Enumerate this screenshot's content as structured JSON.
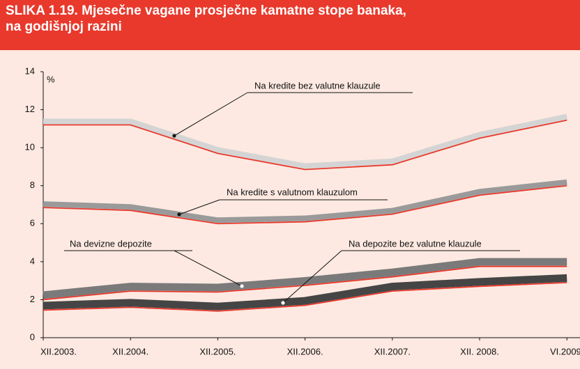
{
  "chart_data": {
    "type": "line",
    "title": [
      "SLIKA 1.19. Mjesečne vagane prosječne kamatne stope banaka,",
      "na godišnjoj razini"
    ],
    "y_unit": "%",
    "categories": [
      "XII.2003.",
      "XII.2004.",
      "XII.2005.",
      "XII.2006.",
      "XII.2007.",
      "XII. 2008.",
      "VI.2009."
    ],
    "ylim": [
      0,
      14
    ],
    "yticks": [
      0,
      2,
      4,
      6,
      8,
      10,
      12,
      14
    ],
    "line_color": "#e8392c",
    "series": [
      {
        "name": "Na kredite bez valutne klauzule",
        "color": "#d4d4d4",
        "values": [
          11.2,
          11.2,
          9.7,
          8.85,
          9.1,
          10.5,
          11.45
        ]
      },
      {
        "name": "Na kredite s valutnom klauzulom",
        "color": "#9a9a9a",
        "values": [
          6.85,
          6.7,
          6.0,
          6.1,
          6.5,
          7.5,
          8.0
        ]
      },
      {
        "name": "Na devizne depozite",
        "color": "#7a7a7a",
        "values": [
          2.0,
          2.45,
          2.4,
          2.75,
          3.2,
          3.75,
          3.75
        ]
      },
      {
        "name": "Na depozite bez valutne klauzule",
        "color": "#454545",
        "values": [
          1.45,
          1.6,
          1.4,
          1.7,
          2.45,
          2.7,
          2.9
        ]
      }
    ]
  }
}
